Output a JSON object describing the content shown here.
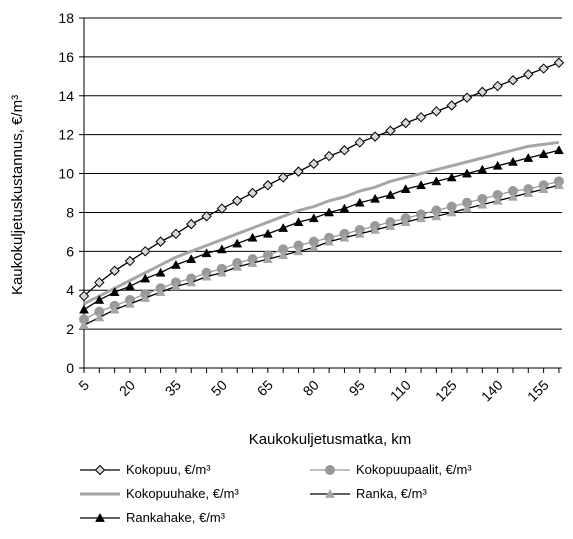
{
  "chart_data": {
    "type": "line",
    "xlabel": "Kaukokuljetusmatka, km",
    "ylabel": "Kaukokuljetuskustannus, €/m³",
    "xlim": [
      5,
      161
    ],
    "ylim": [
      0,
      18
    ],
    "yticks": [
      0,
      2,
      4,
      6,
      8,
      10,
      12,
      14,
      16,
      18
    ],
    "xticks": [
      5,
      20,
      35,
      50,
      65,
      80,
      95,
      110,
      125,
      140,
      155
    ],
    "grid": "horizontal",
    "legend_position": "bottom",
    "x": [
      5,
      10,
      15,
      20,
      25,
      30,
      35,
      40,
      45,
      50,
      55,
      60,
      65,
      70,
      75,
      80,
      85,
      90,
      95,
      100,
      105,
      110,
      115,
      120,
      125,
      130,
      135,
      140,
      145,
      150,
      155,
      160
    ],
    "series": [
      {
        "name": "Kokopuu, €/m³",
        "color": "#000000",
        "fill": "#d9d9d9",
        "marker": "diamond",
        "values": [
          3.7,
          4.4,
          5.0,
          5.5,
          6.0,
          6.5,
          6.9,
          7.4,
          7.8,
          8.2,
          8.6,
          9.0,
          9.4,
          9.8,
          10.1,
          10.5,
          10.9,
          11.2,
          11.6,
          11.9,
          12.2,
          12.6,
          12.9,
          13.2,
          13.5,
          13.9,
          14.2,
          14.5,
          14.8,
          15.1,
          15.4,
          15.7
        ]
      },
      {
        "name": "Kokopuupaalit, €/m³",
        "color": "#999999",
        "fill": "#999999",
        "marker": "circle",
        "values": [
          2.5,
          2.9,
          3.2,
          3.5,
          3.8,
          4.1,
          4.4,
          4.6,
          4.9,
          5.1,
          5.4,
          5.6,
          5.8,
          6.1,
          6.3,
          6.5,
          6.7,
          6.9,
          7.1,
          7.3,
          7.5,
          7.7,
          7.9,
          8.1,
          8.3,
          8.5,
          8.7,
          8.9,
          9.1,
          9.2,
          9.4,
          9.6
        ]
      },
      {
        "name": "Kokopuuhake, €/m³",
        "color": "#a6a6a6",
        "marker": "none",
        "values": [
          3.3,
          3.7,
          4.1,
          4.5,
          4.9,
          5.3,
          5.7,
          6.0,
          6.3,
          6.6,
          6.9,
          7.2,
          7.5,
          7.8,
          8.1,
          8.3,
          8.6,
          8.8,
          9.1,
          9.3,
          9.6,
          9.8,
          10.0,
          10.2,
          10.4,
          10.6,
          10.8,
          11.0,
          11.2,
          11.4,
          11.5,
          11.6
        ]
      },
      {
        "name": "Ranka, €/m³",
        "color": "#000000",
        "fill": "#a6a6a6",
        "marker": "triangle",
        "values": [
          2.2,
          2.6,
          3.0,
          3.3,
          3.6,
          3.9,
          4.2,
          4.4,
          4.7,
          4.9,
          5.2,
          5.4,
          5.6,
          5.8,
          6.0,
          6.2,
          6.5,
          6.7,
          6.9,
          7.1,
          7.3,
          7.5,
          7.7,
          7.8,
          8.0,
          8.2,
          8.4,
          8.6,
          8.8,
          9.0,
          9.2,
          9.4
        ]
      },
      {
        "name": "Rankahake, €/m³",
        "color": "#000000",
        "fill": "#000000",
        "marker": "triangle",
        "values": [
          3.0,
          3.5,
          3.9,
          4.2,
          4.6,
          4.9,
          5.3,
          5.6,
          5.9,
          6.1,
          6.4,
          6.7,
          6.9,
          7.2,
          7.5,
          7.7,
          8.0,
          8.2,
          8.5,
          8.7,
          8.9,
          9.2,
          9.4,
          9.6,
          9.8,
          10.0,
          10.2,
          10.4,
          10.6,
          10.8,
          11.0,
          11.2
        ]
      }
    ]
  }
}
